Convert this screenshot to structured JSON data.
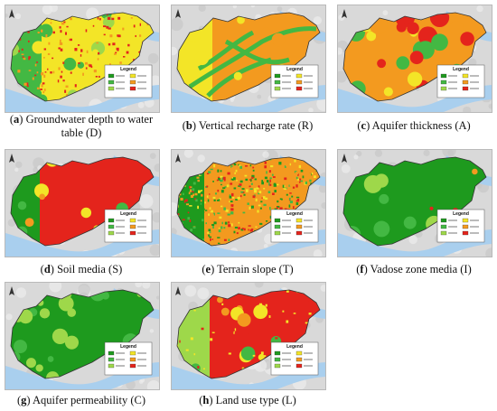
{
  "figure": {
    "panels": [
      {
        "id": "a",
        "letter": "a",
        "caption": "Groundwater depth to water table (D)",
        "theme": "depth"
      },
      {
        "id": "b",
        "letter": "b",
        "caption": "Vertical recharge rate (R)",
        "theme": "recharge"
      },
      {
        "id": "c",
        "letter": "c",
        "caption": "Aquifer thickness (A)",
        "theme": "thickness"
      },
      {
        "id": "d",
        "letter": "d",
        "caption": "Soil media (S)",
        "theme": "soil"
      },
      {
        "id": "e",
        "letter": "e",
        "caption": "Terrain slope (T)",
        "theme": "slope"
      },
      {
        "id": "f",
        "letter": "f",
        "caption": "Vadose zone media (I)",
        "theme": "vadose"
      },
      {
        "id": "g",
        "letter": "g",
        "caption": "Aquifer permeability (C)",
        "theme": "permeability"
      },
      {
        "id": "h",
        "letter": "h",
        "caption": "Land use type (L)",
        "theme": "landuse"
      }
    ],
    "legend_title": "Legend",
    "colors": {
      "terrain": "#d9d9d9",
      "water": "#a9cfee",
      "dark_green": "#1e9a1e",
      "green": "#43b843",
      "light_green": "#9ed84a",
      "yellow": "#f3e527",
      "orange": "#f39a1f",
      "red": "#e4241c"
    }
  }
}
